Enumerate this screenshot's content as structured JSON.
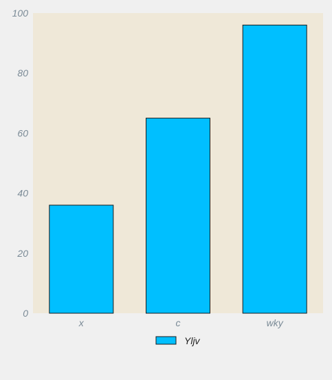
{
  "chart_data": {
    "type": "bar",
    "categories": [
      "x",
      "c",
      "wky"
    ],
    "series": [
      {
        "name": "Yljv",
        "values": [
          36,
          65,
          96
        ]
      }
    ],
    "ylim": [
      0,
      100
    ],
    "yticks": [
      0,
      20,
      40,
      60,
      80,
      100
    ],
    "grid": false,
    "legend_position": "bottom-center",
    "colors": {
      "plot_background": "#efe8d8",
      "bar_fill": "#00bfff",
      "bar_stroke": "#1a1a1a",
      "tick_text": "#7a8a96"
    }
  }
}
